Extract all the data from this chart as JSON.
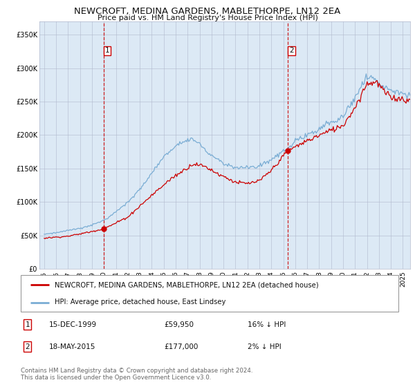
{
  "title": "NEWCROFT, MEDINA GARDENS, MABLETHORPE, LN12 2EA",
  "subtitle": "Price paid vs. HM Land Registry's House Price Index (HPI)",
  "bg_color": "#dce9f5",
  "fig_bg_color": "#ffffff",
  "ylim": [
    0,
    370000
  ],
  "xlim_start": 1994.6,
  "xlim_end": 2025.6,
  "yticks": [
    0,
    50000,
    100000,
    150000,
    200000,
    250000,
    300000,
    350000
  ],
  "ytick_labels": [
    "£0",
    "£50K",
    "£100K",
    "£150K",
    "£200K",
    "£250K",
    "£300K",
    "£350K"
  ],
  "xticks": [
    1995,
    1996,
    1997,
    1998,
    1999,
    2000,
    2001,
    2002,
    2003,
    2004,
    2005,
    2006,
    2007,
    2008,
    2009,
    2010,
    2011,
    2012,
    2013,
    2014,
    2015,
    2016,
    2017,
    2018,
    2019,
    2020,
    2021,
    2022,
    2023,
    2024,
    2025
  ],
  "sale1_x": 1999.96,
  "sale1_y": 59950,
  "sale2_x": 2015.37,
  "sale2_y": 177000,
  "legend_red": "NEWCROFT, MEDINA GARDENS, MABLETHORPE, LN12 2EA (detached house)",
  "legend_blue": "HPI: Average price, detached house, East Lindsey",
  "footer": "Contains HM Land Registry data © Crown copyright and database right 2024.\nThis data is licensed under the Open Government Licence v3.0.",
  "red_color": "#cc0000",
  "blue_color": "#7aadd4",
  "red_anchors_x": [
    1995,
    1997,
    1999.96,
    2002,
    2004,
    2005.5,
    2007.5,
    2008.5,
    2009.5,
    2011,
    2012,
    2013,
    2014,
    2015.37,
    2016,
    2017,
    2018,
    2019,
    2020,
    2021,
    2022,
    2022.8,
    2023.5,
    2024,
    2025,
    2025.6
  ],
  "red_anchors_y": [
    46000,
    49000,
    59950,
    78000,
    110000,
    133000,
    158000,
    153000,
    143000,
    130000,
    128000,
    132000,
    148000,
    177000,
    183000,
    192000,
    200000,
    208000,
    215000,
    242000,
    278000,
    280000,
    265000,
    257000,
    255000,
    252000
  ],
  "blue_anchors_x": [
    1995,
    1996,
    1997,
    1998,
    1999,
    2000,
    2001,
    2002,
    2003,
    2004,
    2005,
    2006,
    2007,
    2007.5,
    2008,
    2008.5,
    2009,
    2009.5,
    2010,
    2011,
    2012,
    2013,
    2014,
    2015,
    2015.37,
    2016,
    2017,
    2018,
    2019,
    2020,
    2021,
    2022,
    2022.5,
    2023,
    2023.5,
    2024,
    2025,
    2025.6
  ],
  "blue_anchors_y": [
    52000,
    54000,
    57000,
    60000,
    65000,
    72000,
    85000,
    100000,
    118000,
    143000,
    168000,
    185000,
    194000,
    195000,
    188000,
    178000,
    170000,
    165000,
    158000,
    153000,
    151000,
    155000,
    164000,
    178000,
    181000,
    192000,
    202000,
    210000,
    220000,
    228000,
    258000,
    285000,
    288000,
    278000,
    272000,
    268000,
    262000,
    258000
  ],
  "noise_seed_red": 7,
  "noise_seed_blue": 13,
  "noise_scale_red": 0.018,
  "noise_scale_blue": 0.018
}
